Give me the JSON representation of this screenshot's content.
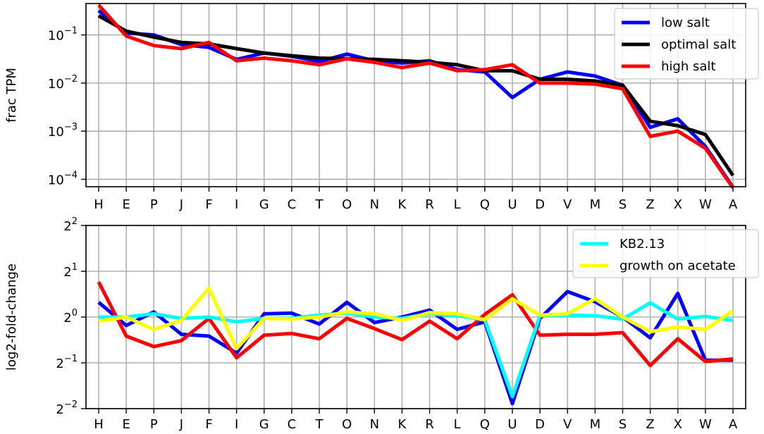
{
  "chart_data": [
    {
      "type": "line",
      "ylabel": "frac TPM",
      "xlabel": "",
      "yscale": "log10",
      "ylim": [
        7e-05,
        0.45
      ],
      "yticks": [
        {
          "value": 0.1,
          "base": "10",
          "exp": "−1"
        },
        {
          "value": 0.01,
          "base": "10",
          "exp": "−2"
        },
        {
          "value": 0.001,
          "base": "10",
          "exp": "−3"
        },
        {
          "value": 0.0001,
          "base": "10",
          "exp": "−4"
        }
      ],
      "grid": true,
      "legend_position": "top-right",
      "categories": [
        "H",
        "E",
        "P",
        "J",
        "F",
        "I",
        "G",
        "C",
        "T",
        "O",
        "N",
        "K",
        "R",
        "L",
        "Q",
        "U",
        "D",
        "V",
        "M",
        "S",
        "Z",
        "X",
        "W",
        "A"
      ],
      "series": [
        {
          "name": "low salt",
          "color": "#0000ff",
          "values": [
            0.32,
            0.11,
            0.1,
            0.063,
            0.055,
            0.031,
            0.042,
            0.036,
            0.028,
            0.04,
            0.029,
            0.026,
            0.029,
            0.019,
            0.017,
            0.005,
            0.012,
            0.017,
            0.014,
            0.009,
            0.0012,
            0.0018,
            0.00048,
            6.8e-05
          ]
        },
        {
          "name": "optimal salt",
          "color": "#000000",
          "values": [
            0.25,
            0.12,
            0.09,
            0.07,
            0.065,
            0.052,
            0.042,
            0.037,
            0.033,
            0.032,
            0.031,
            0.029,
            0.027,
            0.024,
            0.018,
            0.018,
            0.012,
            0.012,
            0.011,
            0.009,
            0.0016,
            0.0013,
            0.00085,
            0.00012
          ]
        },
        {
          "name": "high salt",
          "color": "#ff0000",
          "values": [
            0.42,
            0.095,
            0.06,
            0.052,
            0.07,
            0.029,
            0.033,
            0.029,
            0.024,
            0.032,
            0.027,
            0.021,
            0.026,
            0.018,
            0.019,
            0.024,
            0.01,
            0.01,
            0.0095,
            0.0076,
            0.00078,
            0.001,
            0.00044,
            6.6e-05
          ]
        }
      ]
    },
    {
      "type": "line",
      "ylabel": "log2-fold-change",
      "xlabel": "",
      "yscale": "log2",
      "ylim": [
        0.25,
        4
      ],
      "yticks": [
        {
          "value": 4,
          "base": "2",
          "exp": "2"
        },
        {
          "value": 2,
          "base": "2",
          "exp": "1"
        },
        {
          "value": 1,
          "base": "2",
          "exp": "0"
        },
        {
          "value": 0.5,
          "base": "2",
          "exp": "−1"
        },
        {
          "value": 0.25,
          "base": "2",
          "exp": "−2"
        }
      ],
      "grid": true,
      "legend_position": "top-right",
      "categories": [
        "H",
        "E",
        "P",
        "J",
        "F",
        "I",
        "G",
        "C",
        "T",
        "O",
        "N",
        "K",
        "R",
        "L",
        "Q",
        "U",
        "D",
        "V",
        "M",
        "S",
        "Z",
        "X",
        "W",
        "A"
      ],
      "series": [
        {
          "name": "",
          "color": "#0000ff",
          "values": [
            1.25,
            0.88,
            1.08,
            0.77,
            0.75,
            0.58,
            1.05,
            1.06,
            0.9,
            1.25,
            0.92,
            1.0,
            1.11,
            0.83,
            0.93,
            0.27,
            0.98,
            1.47,
            1.26,
            1.0,
            0.73,
            1.43,
            0.52,
            0.52
          ]
        },
        {
          "name": "",
          "color": "#ff0000",
          "values": [
            1.7,
            0.75,
            0.64,
            0.7,
            0.98,
            0.54,
            0.76,
            0.78,
            0.72,
            0.98,
            0.84,
            0.71,
            0.94,
            0.72,
            1.04,
            1.4,
            0.76,
            0.77,
            0.77,
            0.79,
            0.48,
            0.72,
            0.51,
            0.53
          ]
        },
        {
          "name": "KB2.13",
          "color": "#00ffff",
          "values": [
            1.0,
            1.0,
            1.05,
            0.98,
            1.0,
            0.93,
            0.98,
            0.98,
            1.03,
            1.06,
            1.0,
            0.98,
            1.05,
            1.02,
            0.96,
            0.3,
            1.02,
            1.03,
            1.02,
            0.97,
            1.24,
            0.97,
            1.01,
            0.95
          ]
        },
        {
          "name": "growth on acetate",
          "color": "#ffff00",
          "values": [
            0.94,
            1.0,
            0.83,
            0.95,
            1.55,
            0.62,
            0.98,
            0.97,
            1.0,
            1.08,
            1.05,
            0.95,
            1.07,
            1.05,
            0.96,
            1.32,
            1.03,
            1.05,
            1.32,
            1.0,
            0.8,
            0.86,
            0.83,
            1.1
          ]
        }
      ]
    }
  ]
}
